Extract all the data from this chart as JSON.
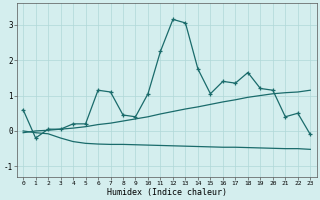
{
  "xlabel": "Humidex (Indice chaleur)",
  "xlim": [
    -0.5,
    23.5
  ],
  "ylim": [
    -1.3,
    3.6
  ],
  "yticks": [
    -1,
    0,
    1,
    2,
    3
  ],
  "xticks": [
    0,
    1,
    2,
    3,
    4,
    5,
    6,
    7,
    8,
    9,
    10,
    11,
    12,
    13,
    14,
    15,
    16,
    17,
    18,
    19,
    20,
    21,
    22,
    23
  ],
  "bg_color": "#d4eeee",
  "grid_color": "#b0d8d8",
  "line_color": "#1a6b6b",
  "line1_x": [
    0,
    1,
    2,
    3,
    4,
    5,
    6,
    7,
    8,
    9,
    10,
    11,
    12,
    13,
    14,
    15,
    16,
    17,
    18,
    19,
    20,
    21,
    22,
    23
  ],
  "line1_y": [
    0.6,
    -0.2,
    0.05,
    0.05,
    0.2,
    0.2,
    1.15,
    1.1,
    0.45,
    0.4,
    1.05,
    2.25,
    3.15,
    3.05,
    1.75,
    1.05,
    1.4,
    1.35,
    1.65,
    1.2,
    1.15,
    0.4,
    0.5,
    -0.1
  ],
  "line2_x": [
    0,
    1,
    2,
    3,
    4,
    5,
    6,
    7,
    8,
    9,
    10,
    11,
    12,
    13,
    14,
    15,
    16,
    17,
    18,
    19,
    20,
    21,
    22,
    23
  ],
  "line2_y": [
    -0.05,
    0.0,
    0.02,
    0.05,
    0.08,
    0.12,
    0.18,
    0.22,
    0.28,
    0.34,
    0.4,
    0.48,
    0.55,
    0.62,
    0.68,
    0.75,
    0.82,
    0.88,
    0.95,
    1.0,
    1.05,
    1.08,
    1.1,
    1.15
  ],
  "line3_x": [
    0,
    1,
    2,
    3,
    4,
    5,
    6,
    7,
    8,
    9,
    10,
    11,
    12,
    13,
    14,
    15,
    16,
    17,
    18,
    19,
    20,
    21,
    22,
    23
  ],
  "line3_y": [
    0.0,
    -0.05,
    -0.08,
    -0.2,
    -0.3,
    -0.35,
    -0.37,
    -0.38,
    -0.38,
    -0.39,
    -0.4,
    -0.41,
    -0.42,
    -0.43,
    -0.44,
    -0.45,
    -0.46,
    -0.46,
    -0.47,
    -0.48,
    -0.49,
    -0.5,
    -0.5,
    -0.52
  ]
}
